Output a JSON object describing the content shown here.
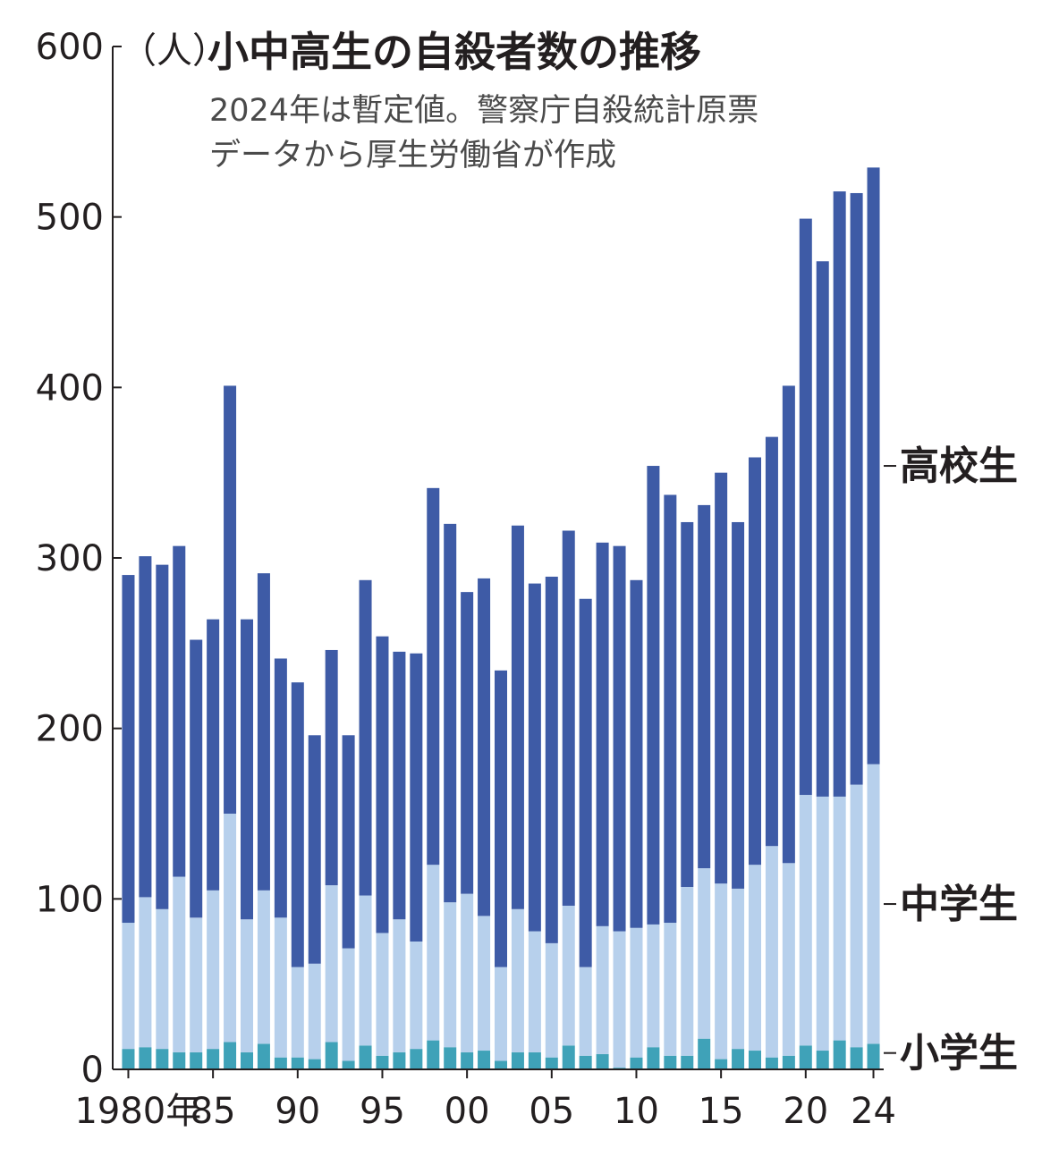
{
  "chart_data": {
    "type": "bar",
    "stacked": true,
    "title": "小中高生の自殺者数の推移",
    "subtitle_lines": [
      "2024年は暫定値。警察庁自殺統計原票",
      "データから厚生労働省が作成"
    ],
    "unit_label": "（人）",
    "x": [
      1980,
      1981,
      1982,
      1983,
      1984,
      1985,
      1986,
      1987,
      1988,
      1989,
      1990,
      1991,
      1992,
      1993,
      1994,
      1995,
      1996,
      1997,
      1998,
      1999,
      2000,
      2001,
      2002,
      2003,
      2004,
      2005,
      2006,
      2007,
      2008,
      2009,
      2010,
      2011,
      2012,
      2013,
      2014,
      2015,
      2016,
      2017,
      2018,
      2019,
      2020,
      2021,
      2022,
      2023,
      2024
    ],
    "x_tick_labels": [
      {
        "x": 1980,
        "label": "1980年"
      },
      {
        "x": 1985,
        "label": "85"
      },
      {
        "x": 1990,
        "label": "90"
      },
      {
        "x": 1995,
        "label": "95"
      },
      {
        "x": 2000,
        "label": "00"
      },
      {
        "x": 2005,
        "label": "05"
      },
      {
        "x": 2010,
        "label": "10"
      },
      {
        "x": 2015,
        "label": "15"
      },
      {
        "x": 2020,
        "label": "20"
      },
      {
        "x": 2024,
        "label": "24"
      }
    ],
    "y_ticks": [
      "0",
      "100",
      "200",
      "300",
      "400",
      "500",
      "600"
    ],
    "ylim": [
      0,
      600
    ],
    "grid": false,
    "series": [
      {
        "name": "小学生",
        "color": "#3fa2b8",
        "values": [
          12,
          13,
          12,
          10,
          10,
          12,
          16,
          10,
          15,
          7,
          7,
          6,
          16,
          5,
          14,
          8,
          10,
          12,
          17,
          13,
          10,
          11,
          5,
          10,
          10,
          7,
          14,
          8,
          9,
          1,
          7,
          13,
          8,
          8,
          18,
          6,
          12,
          11,
          7,
          8,
          14,
          11,
          17,
          13,
          15
        ]
      },
      {
        "name": "中学生",
        "color": "#b7d0ec",
        "values": [
          74,
          88,
          82,
          103,
          79,
          93,
          134,
          78,
          90,
          82,
          53,
          56,
          92,
          66,
          88,
          72,
          78,
          63,
          103,
          85,
          93,
          79,
          55,
          84,
          71,
          67,
          82,
          52,
          75,
          80,
          76,
          72,
          78,
          99,
          100,
          103,
          94,
          109,
          124,
          113,
          147,
          149,
          143,
          154,
          164
        ]
      },
      {
        "name": "高校生",
        "color": "#3e5ba6",
        "values": [
          204,
          200,
          202,
          194,
          163,
          159,
          251,
          176,
          186,
          152,
          167,
          134,
          138,
          125,
          185,
          174,
          157,
          169,
          221,
          222,
          177,
          198,
          174,
          225,
          204,
          215,
          220,
          216,
          225,
          226,
          204,
          269,
          251,
          214,
          213,
          241,
          215,
          239,
          240,
          280,
          338,
          314,
          355,
          347,
          350
        ]
      }
    ]
  }
}
